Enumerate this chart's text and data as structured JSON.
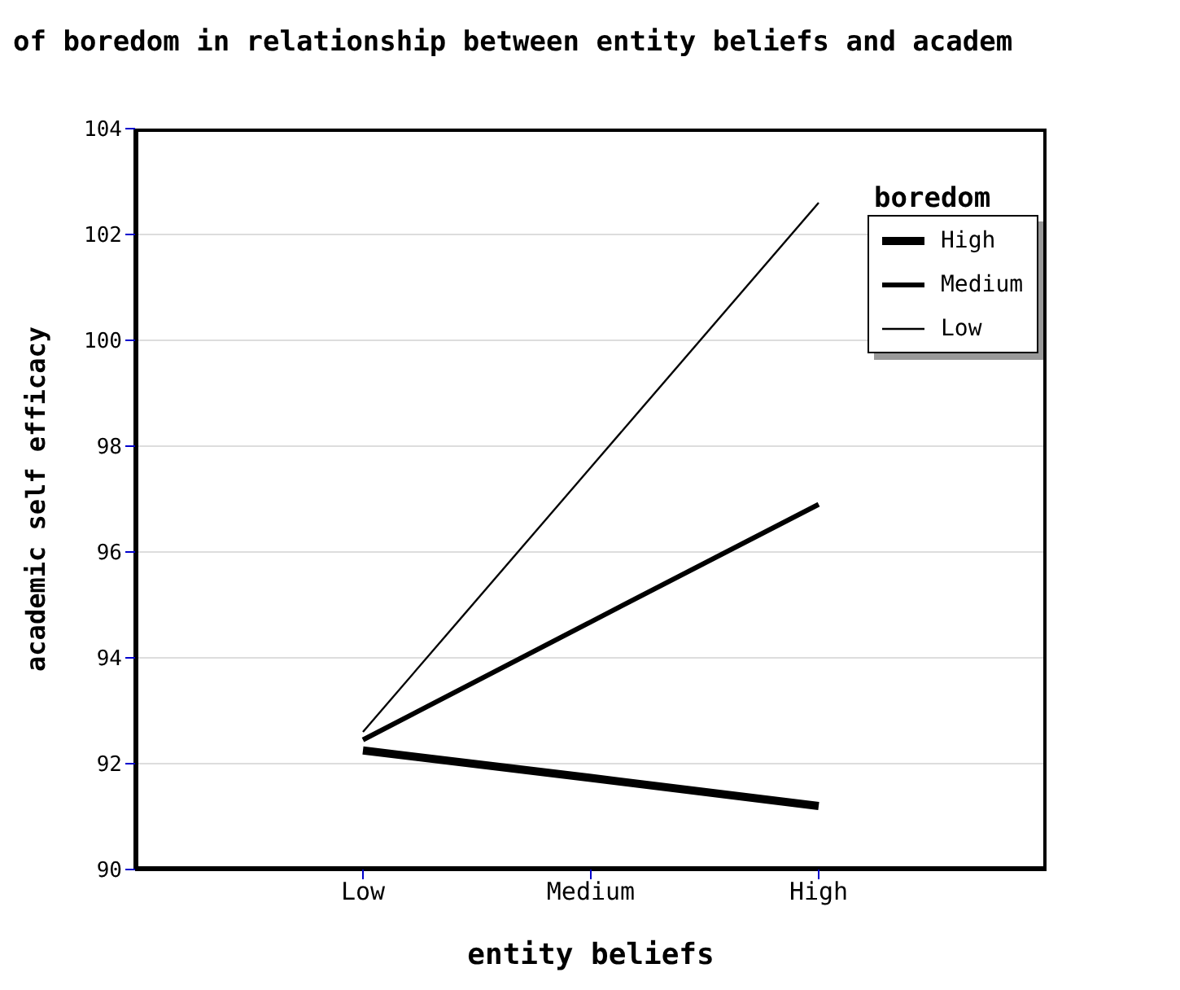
{
  "chart_data": {
    "type": "line",
    "title": "of boredom in relationship between entity beliefs and academ",
    "xlabel": "entity beliefs",
    "ylabel": "academic self efficacy",
    "legend_title": "boredom",
    "categories": [
      "Low",
      "Medium",
      "High"
    ],
    "series": [
      {
        "name": "High",
        "color": "#000000",
        "values": [
          92.25,
          91.73,
          91.2
        ]
      },
      {
        "name": "Medium",
        "color": "#000000",
        "values": [
          92.45,
          94.68,
          96.9
        ]
      },
      {
        "name": "Low",
        "color": "#000000",
        "values": [
          92.6,
          97.6,
          102.6
        ]
      }
    ],
    "ylim": [
      90,
      104
    ],
    "yticks": [
      90,
      92,
      94,
      96,
      98,
      100,
      102,
      104
    ],
    "grid": "y",
    "legend": "top right",
    "marker": "none",
    "line_style": "solid"
  }
}
